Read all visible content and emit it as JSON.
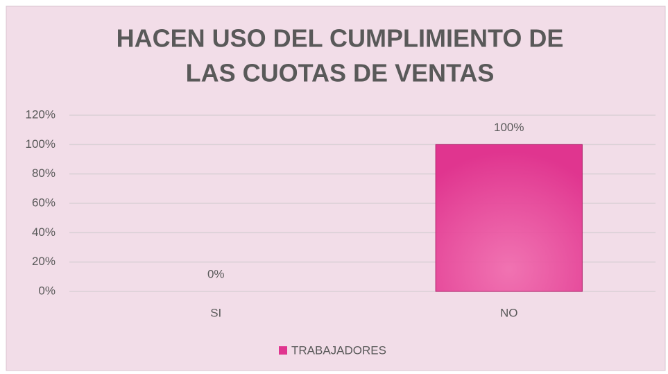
{
  "chart_data": {
    "type": "bar",
    "title": [
      "HACEN USO DEL CUMPLIMIENTO DE",
      "LAS CUOTAS DE VENTAS"
    ],
    "categories": [
      "SI",
      "NO"
    ],
    "series": [
      {
        "name": "TRABAJADORES",
        "color": "#e0358f",
        "values": [
          0,
          100
        ],
        "value_labels": [
          "0%",
          "100%"
        ]
      }
    ],
    "ylim": [
      0,
      120
    ],
    "yticks": [
      {
        "value": 0,
        "label": "0%"
      },
      {
        "value": 20,
        "label": "20%"
      },
      {
        "value": 40,
        "label": "40%"
      },
      {
        "value": 60,
        "label": "60%"
      },
      {
        "value": 80,
        "label": "80%"
      },
      {
        "value": 100,
        "label": "100%"
      },
      {
        "value": 120,
        "label": "120%"
      }
    ],
    "grid": true
  }
}
